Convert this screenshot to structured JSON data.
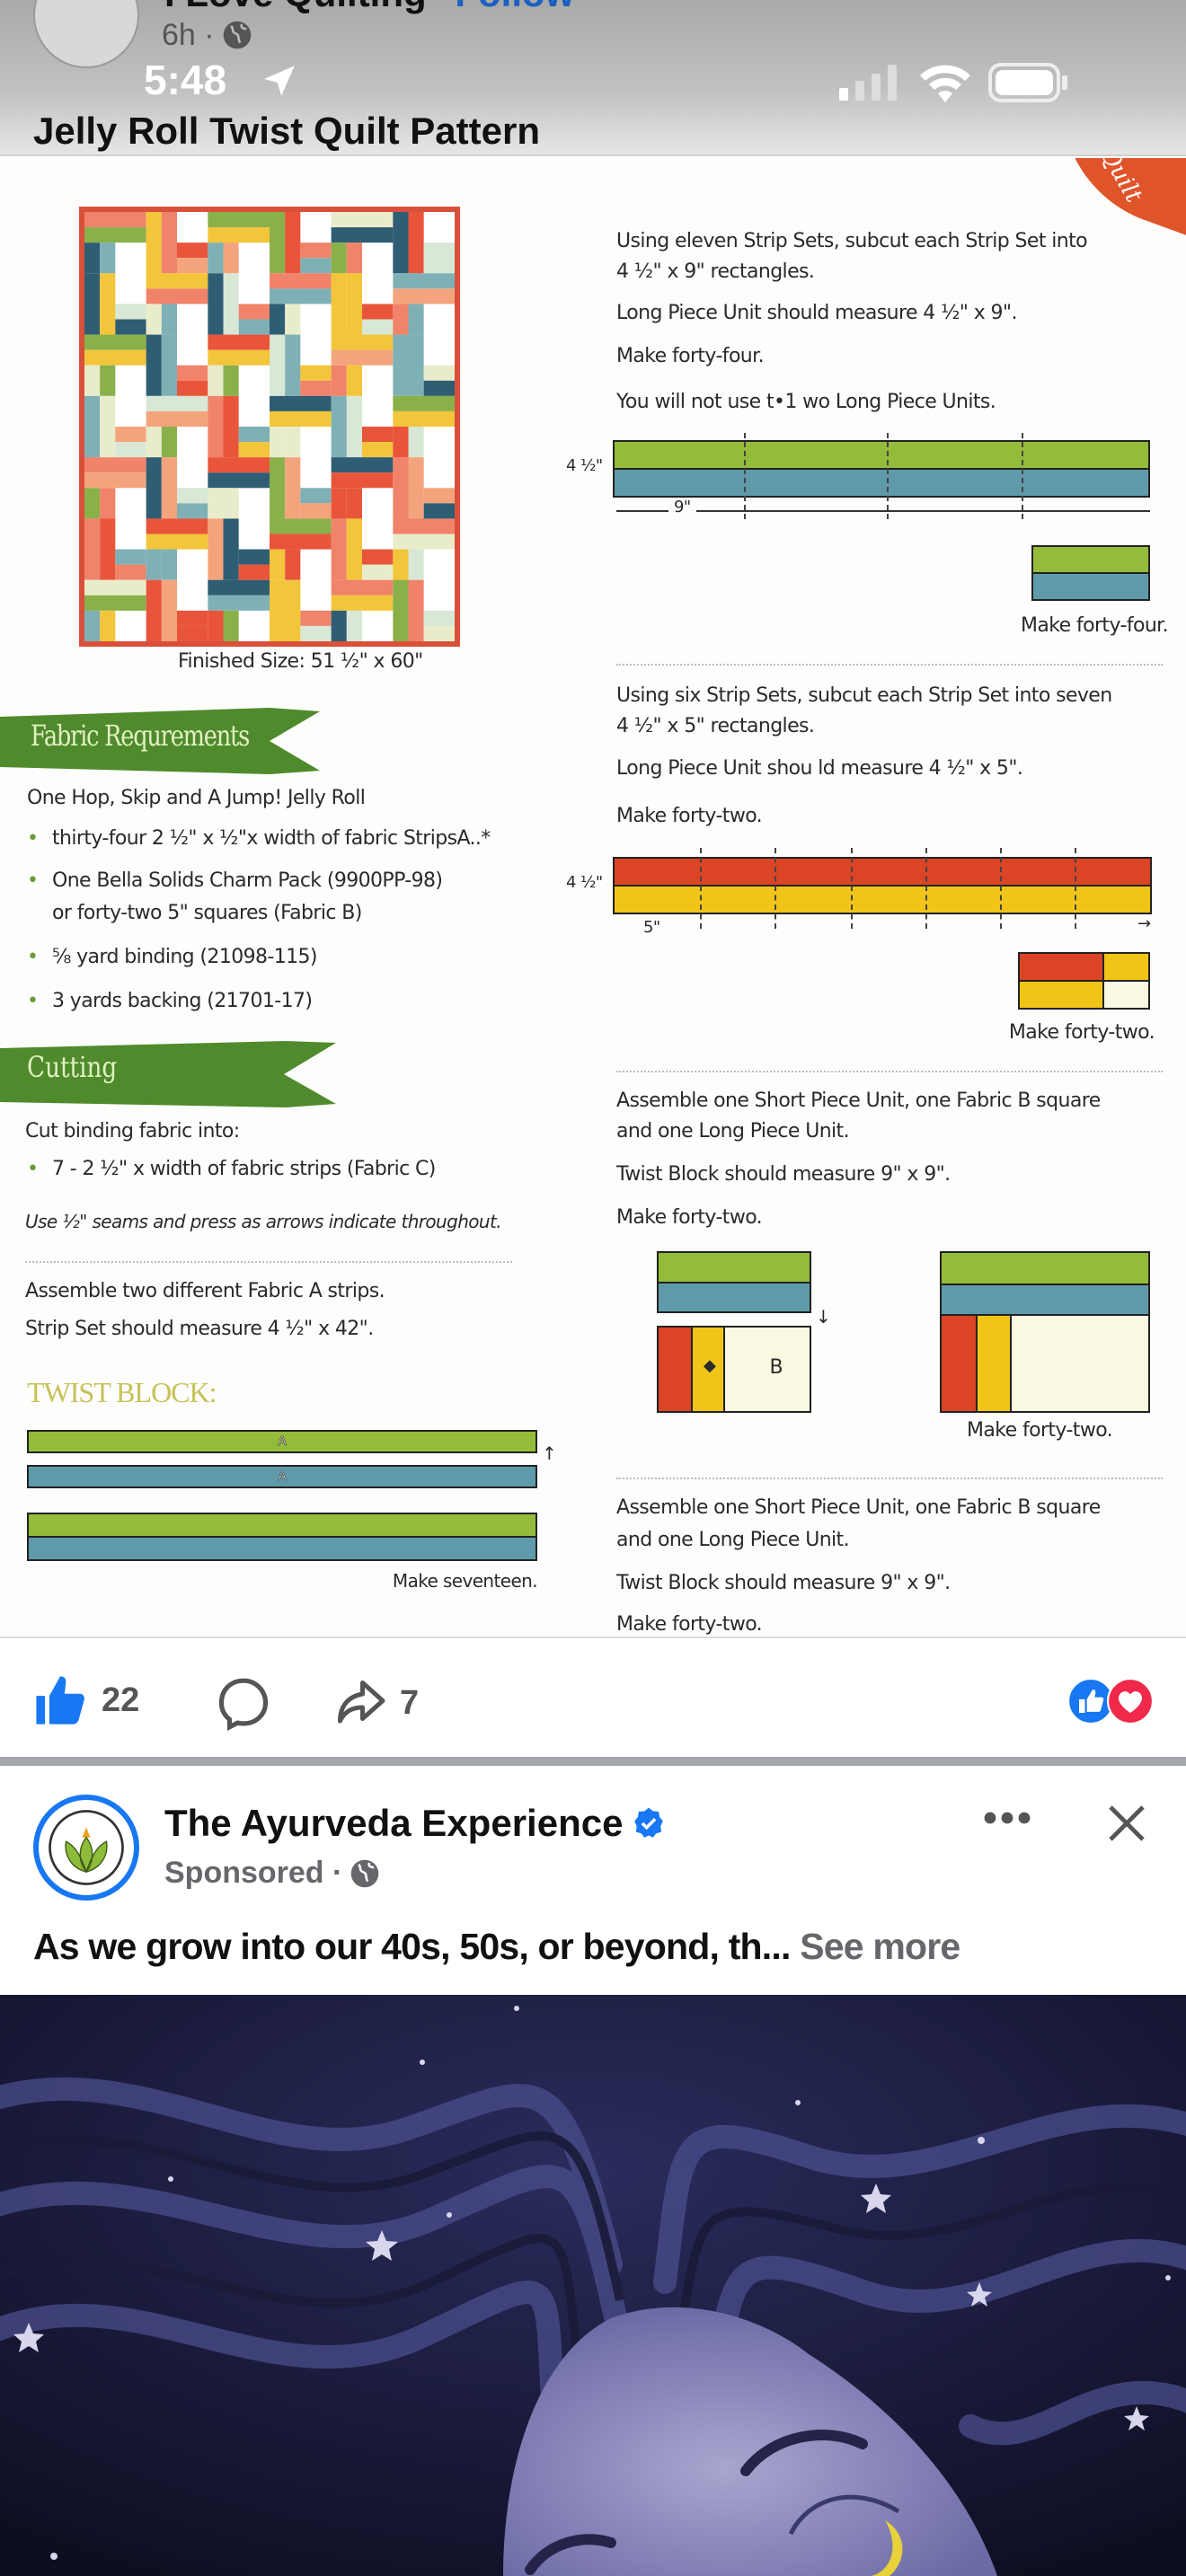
{
  "status_bar": {
    "time": "5:48"
  },
  "post": {
    "page_name": "I Love Quilting",
    "follow_label": "Follow",
    "time_ago": "6h ·",
    "title": "Jelly Roll Twist Quilt Pattern",
    "likes": "22",
    "shares": "7"
  },
  "pattern": {
    "corner_label": "Quilt",
    "finished_size": "Finished Size: 51 ½\" x 60\"",
    "fabric_banner": "Fabric Requrements",
    "fabric_intro": "One Hop, Skip and A Jump! Jelly Roll",
    "fabric_items": [
      "thirty-four 2 ½\" x ½\"x width of fabric  StripsA..*",
      "One Bella Solids Charm Pack (9900PP-98)",
      "or forty-two 5\" squares (Fabric B)",
      "⅝ yard binding (21098-115)",
      "3 yards backing (21701-17)"
    ],
    "cutting_banner": "Cutting",
    "cutting_intro": "Cut binding fabric into:",
    "cutting_item": "7 - 2 ½\" x width of fabric strips (Fabric C)",
    "seam_note": "Use ½\" seams and press as arrows indicate throughout.",
    "assemble_1": "Assemble two different Fabric A strips.",
    "assemble_2": "Strip Set should measure 4 ½\" x 42\".",
    "twist_heading": "TWIST BLOCK:",
    "strip_label": "A",
    "make_seventeen": "Make seventeen.",
    "step2": [
      "Using eleven Strip Sets, subcut each Strip Set into",
      "4 ½\" x 9\" rectangles.",
      "Long Piece Unit should measure 4 ½\" x 9\".",
      "Make forty-four.",
      "You will not use t•1 wo Long Piece Units."
    ],
    "height_label": "4 ½\"",
    "nine_label": "9\"",
    "make_forty_four": "Make forty-four.",
    "step3": [
      "Using six Strip Sets, subcut each Strip Set into seven",
      "4 ½\" x 5\" rectangles.",
      "Long Piece Unit shou ld measure 4 ½\" x 5\".",
      "Make forty-two."
    ],
    "five_label": "5\"",
    "make_forty_two": "Make forty-two.",
    "step4": [
      "Assemble one Short Piece Unit, one Fabric B square",
      "and one Long Piece Unit.",
      "Twist Block should measure 9\" x 9\".",
      "Make forty-two."
    ],
    "b_label": "B",
    "step5": [
      "Assemble one Short Piece Unit, one Fabric B square",
      "and one Long Piece Unit.",
      "Twist Block should measure 9\" x 9\".",
      "Make forty-two."
    ],
    "colors": {
      "green": "#94bb3a",
      "blue": "#5f9aab",
      "red": "#dc4426",
      "yellow": "#f1c418",
      "banner": "#4f8a2c",
      "corner": "#e0542a"
    },
    "quilt_palette": [
      "#e8553a",
      "#2f5d73",
      "#7fb0b5",
      "#f2c53a",
      "#f0836a",
      "#8ab04a",
      "#e9eccb",
      "#f3a47c",
      "#d8e7d6",
      "#ffffff"
    ]
  },
  "ad": {
    "advertiser": "The Ayurveda Experience",
    "sponsored": "Sponsored ·",
    "caption": "As we grow into our 40s, 50s, or beyond, th...",
    "see_more": "See more"
  }
}
